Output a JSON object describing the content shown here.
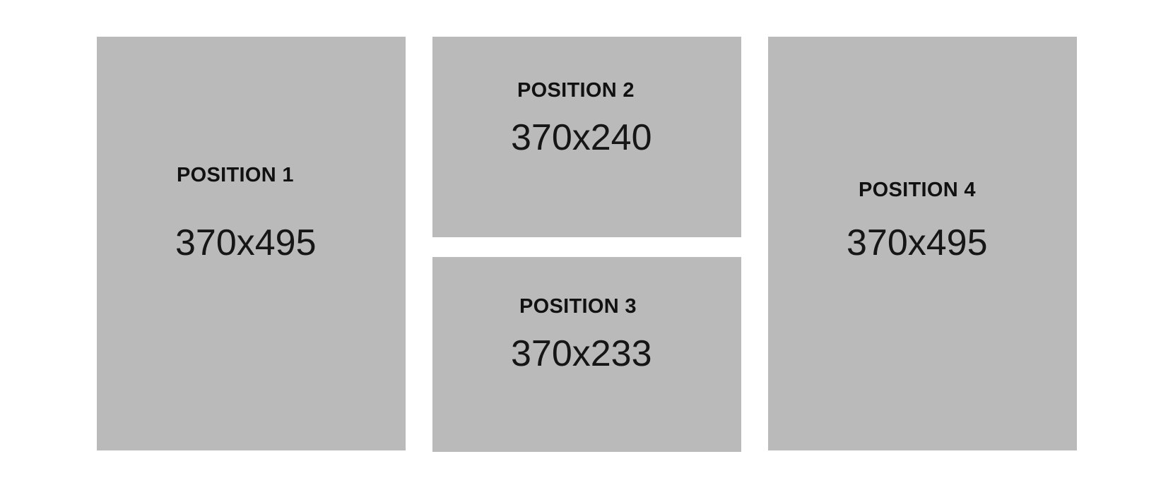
{
  "positions": [
    {
      "label": "POSITION 1",
      "size": "370x495"
    },
    {
      "label": "POSITION 2",
      "size": "370x240"
    },
    {
      "label": "POSITION 3",
      "size": "370x233"
    },
    {
      "label": "POSITION 4",
      "size": "370x495"
    }
  ],
  "colors": {
    "background": "#ffffff",
    "placeholder": "#bababa",
    "text": "#111111"
  }
}
